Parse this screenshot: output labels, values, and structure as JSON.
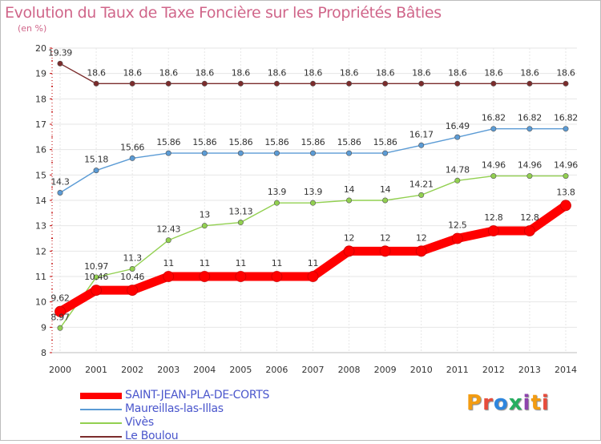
{
  "header": {
    "title": "Evolution du Taux de Taxe Foncière sur les Propriétés Bâties",
    "subtitle": "(en %)"
  },
  "logo": {
    "text": "Proxiti",
    "colors": [
      "#f39c12",
      "#e74c3c",
      "#2e86de",
      "#27ae60",
      "#8e44ad",
      "#f39c12",
      "#e74c3c"
    ]
  },
  "chart_data": {
    "type": "line",
    "title": "Evolution du Taux de Taxe Foncière sur les Propriétés Bâties",
    "ylabel": "(en %)",
    "xlabel": "",
    "ylim": [
      8,
      20
    ],
    "grid": true,
    "legend_position": "bottom-left",
    "x": [
      "2000",
      "2001",
      "2002",
      "2003",
      "2004",
      "2005",
      "2006",
      "2007",
      "2008",
      "2009",
      "2010",
      "2011",
      "2012",
      "2013",
      "2014"
    ],
    "yticks": [
      "8",
      "9",
      "10",
      "11",
      "12",
      "13",
      "14",
      "15",
      "16",
      "17",
      "18",
      "19",
      "20"
    ],
    "series": [
      {
        "name": "SAINT-JEAN-PLA-DE-CORTS",
        "color": "#ff0000",
        "values": [
          9.62,
          10.46,
          10.46,
          11,
          11,
          11,
          11,
          11,
          12,
          12,
          12,
          12.5,
          12.8,
          12.8,
          13.8
        ],
        "labels": [
          "9.62",
          "10.46",
          "10.46",
          "11",
          "11",
          "11",
          "11",
          "11",
          "12",
          "12",
          "12",
          "12.5",
          "12.8",
          "12.8",
          "13.8"
        ]
      },
      {
        "name": "Maureillas-las-Illas",
        "color": "#5b9bd5",
        "values": [
          14.3,
          15.18,
          15.66,
          15.86,
          15.86,
          15.86,
          15.86,
          15.86,
          15.86,
          15.86,
          16.17,
          16.49,
          16.82,
          16.82,
          16.82
        ],
        "labels": [
          "14.3",
          "15.18",
          "15.66",
          "15.86",
          "15.86",
          "15.86",
          "15.86",
          "15.86",
          "15.86",
          "15.86",
          "16.17",
          "16.49",
          "16.82",
          "16.82",
          "16.82"
        ]
      },
      {
        "name": "Vivès",
        "color": "#92d050",
        "values": [
          8.97,
          10.97,
          11.3,
          12.43,
          13,
          13.13,
          13.9,
          13.9,
          14,
          14,
          14.21,
          14.78,
          14.96,
          14.96,
          14.96
        ],
        "labels": [
          "8.97",
          "10.97",
          "11.3",
          "12.43",
          "13",
          "13.13",
          "13.9",
          "13.9",
          "14",
          "14",
          "14.21",
          "14.78",
          "14.96",
          "14.96",
          "14.96"
        ]
      },
      {
        "name": "Le Boulou",
        "color": "#7b2c2c",
        "values": [
          19.39,
          18.6,
          18.6,
          18.6,
          18.6,
          18.6,
          18.6,
          18.6,
          18.6,
          18.6,
          18.6,
          18.6,
          18.6,
          18.6,
          18.6
        ],
        "labels": [
          "19.39",
          "18.6",
          "18.6",
          "18.6",
          "18.6",
          "18.6",
          "18.6",
          "18.6",
          "18.6",
          "18.6",
          "18.6",
          "18.6",
          "18.6",
          "18.6",
          "18.6"
        ]
      }
    ]
  }
}
